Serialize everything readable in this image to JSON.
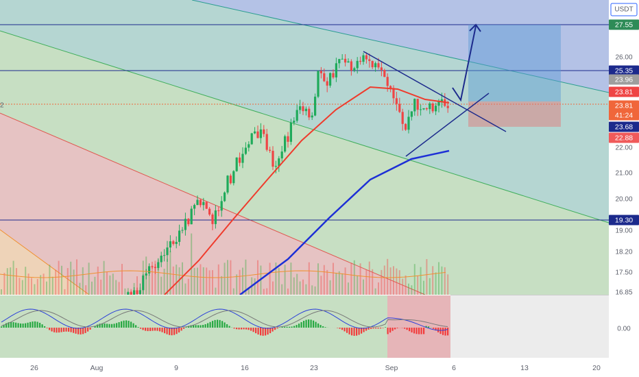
{
  "left_marker": "2",
  "price_axis": {
    "unit": "USDT",
    "labels": [
      "26.00",
      "22.00",
      "21.00",
      "20.00",
      "19.00",
      "18.20",
      "17.50",
      "16.85"
    ]
  },
  "price_tags": [
    "27.55",
    "25.35",
    "23.96",
    "23.81",
    "23.81",
    "41:24",
    "23.68",
    "22.88",
    "19.30"
  ],
  "macd_axis": {
    "labels": [
      "0.00"
    ]
  },
  "time_axis": {
    "labels": [
      "26",
      "Aug",
      "9",
      "16",
      "23",
      "Sep",
      "6",
      "13",
      "20"
    ]
  }
}
